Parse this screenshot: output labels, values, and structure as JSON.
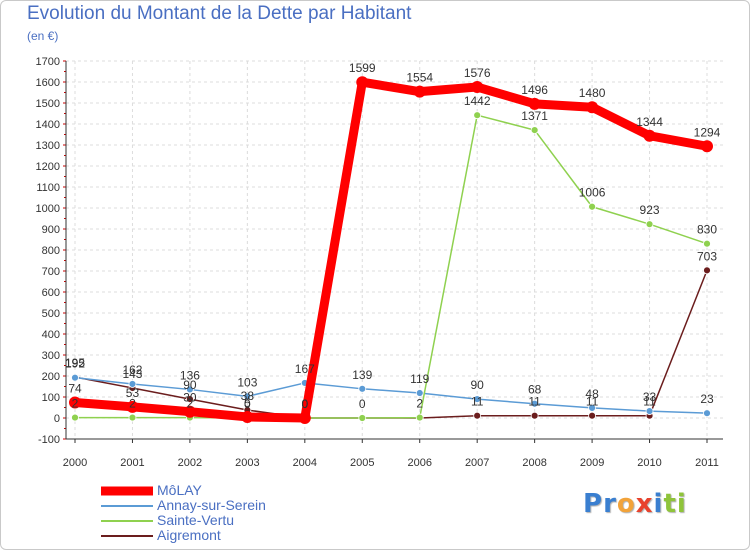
{
  "header": {
    "title": "Evolution du Montant de la Dette par Habitant",
    "subtitle": "(en €)"
  },
  "chart_data": {
    "type": "line",
    "title": "Evolution du Montant de la Dette par Habitant",
    "ylabel": "(en €)",
    "xlabel": "",
    "ylim": [
      -100,
      1700
    ],
    "yticks": [
      "-100",
      "0",
      "100",
      "200",
      "300",
      "400",
      "500",
      "600",
      "700",
      "800",
      "900",
      "1000",
      "1100",
      "1200",
      "1300",
      "1400",
      "1500",
      "1600",
      "1700"
    ],
    "categories": [
      "2000",
      "2001",
      "2002",
      "2003",
      "2004",
      "2005",
      "2006",
      "2007",
      "2008",
      "2009",
      "2010",
      "2011"
    ],
    "grid": true,
    "legend_position": "bottom-left",
    "series": [
      {
        "name": "Aigremont",
        "color": "#6b1d1d",
        "values": [
          195,
          143,
          90,
          38,
          0,
          0,
          0,
          11,
          11,
          11,
          11,
          703
        ],
        "labels": [
          "195",
          "143",
          "90",
          "38",
          "0",
          "",
          "",
          "11",
          "11",
          "11",
          "11",
          "703"
        ]
      },
      {
        "name": "Annay-sur-Serein",
        "color": "#5b9bd5",
        "values": [
          192,
          162,
          136,
          103,
          167,
          139,
          119,
          90,
          68,
          48,
          33,
          23
        ],
        "labels": [
          "192",
          "162",
          "136",
          "103",
          "167",
          "139",
          "119",
          "90",
          "68",
          "48",
          "33",
          "23"
        ]
      },
      {
        "name": "Sainte-Vertu",
        "color": "#8fd14f",
        "values": [
          2,
          2,
          2,
          0,
          0,
          0,
          2,
          1442,
          1371,
          1006,
          923,
          830
        ],
        "labels": [
          "2",
          "2",
          "2",
          "0",
          "0",
          "0",
          "2",
          "1442",
          "1371",
          "1006",
          "923",
          "830"
        ]
      },
      {
        "name": "MôLAY",
        "color": "#ff0000",
        "values": [
          74,
          53,
          30,
          5,
          0,
          1599,
          1554,
          1576,
          1496,
          1480,
          1344,
          1294
        ],
        "labels": [
          "74",
          "53",
          "30",
          "5",
          "0",
          "1599",
          "1554",
          "1576",
          "1496",
          "1480",
          "1344",
          "1294"
        ]
      }
    ]
  },
  "legend": {
    "items": [
      {
        "label": "MôLAY",
        "color": "#ff0000"
      },
      {
        "label": "Annay-sur-Serein",
        "color": "#5b9bd5"
      },
      {
        "label": "Sainte-Vertu",
        "color": "#8fd14f"
      },
      {
        "label": "Aigremont",
        "color": "#6b1d1d"
      }
    ]
  },
  "logo": {
    "text": "Proxiti",
    "letters": [
      {
        "ch": "P",
        "color": "#3a7fd0"
      },
      {
        "ch": "r",
        "color": "#3a7fd0"
      },
      {
        "ch": "o",
        "color": "#f2a33a"
      },
      {
        "ch": "x",
        "color": "#e8432e"
      },
      {
        "ch": "i",
        "color": "#3a7fd0"
      },
      {
        "ch": "t",
        "color": "#8fc43a"
      },
      {
        "ch": "i",
        "color": "#8fc43a"
      }
    ]
  }
}
